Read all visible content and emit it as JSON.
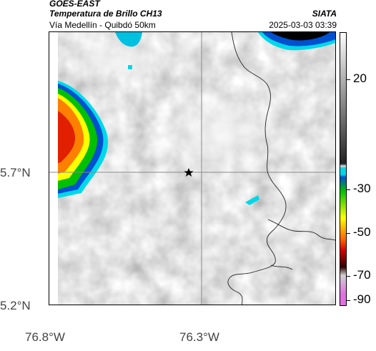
{
  "header": {
    "satellite": "GOES-EAST",
    "product": "Temperatura de Brillo CH13",
    "region": "Vía Medellín - Quibdó 50km",
    "org": "SIATA",
    "datetime": "2025-03-03 03:39"
  },
  "axes": {
    "lat_labels": [
      "5.7°N",
      "5.2°N"
    ],
    "lon_labels": [
      "76.8°W",
      "76.3°W"
    ]
  },
  "colorbar": {
    "labels": [
      "20",
      "-30",
      "-50",
      "-70",
      "-90"
    ],
    "colors": [
      "#ffffff",
      "#222222",
      "#e8e8e8",
      "#00d8e8",
      "#0050d0",
      "#00c000",
      "#ffff00",
      "#ff6000",
      "#d00000",
      "#300000",
      "#d0d0d0",
      "#e070e0"
    ]
  },
  "map": {
    "marker": "star-icon"
  }
}
